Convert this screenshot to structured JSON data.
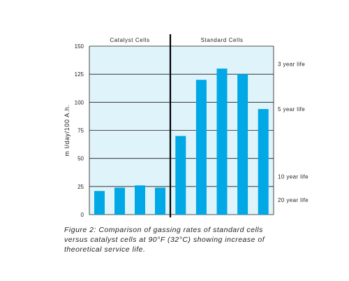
{
  "chart_data": {
    "type": "bar",
    "ylabel": "m l/day/100 A.h.",
    "ylim": [
      0,
      150
    ],
    "yticks": [
      0,
      25,
      50,
      75,
      100,
      125,
      150
    ],
    "grid": true,
    "background_color": "#dff3fa",
    "bar_color": "#00a8e6",
    "sections": [
      "Catalyst Cells",
      "Standard Cells"
    ],
    "series": [
      {
        "section": "Catalyst Cells",
        "values": [
          21,
          24,
          26,
          24
        ]
      },
      {
        "section": "Standard Cells",
        "values": [
          70,
          120,
          130,
          125,
          94
        ]
      }
    ],
    "right_annotations": [
      {
        "label": "3 year life",
        "value": 134
      },
      {
        "label": "5 year life",
        "value": 94
      },
      {
        "label": "10 year life",
        "value": 34
      },
      {
        "label": "20 year life",
        "value": 13
      }
    ]
  },
  "caption": "Figure 2: Comparison of gassing rates of standard cells versus catalyst cells at 90°F (32°C) showing increase of theoretical service life."
}
